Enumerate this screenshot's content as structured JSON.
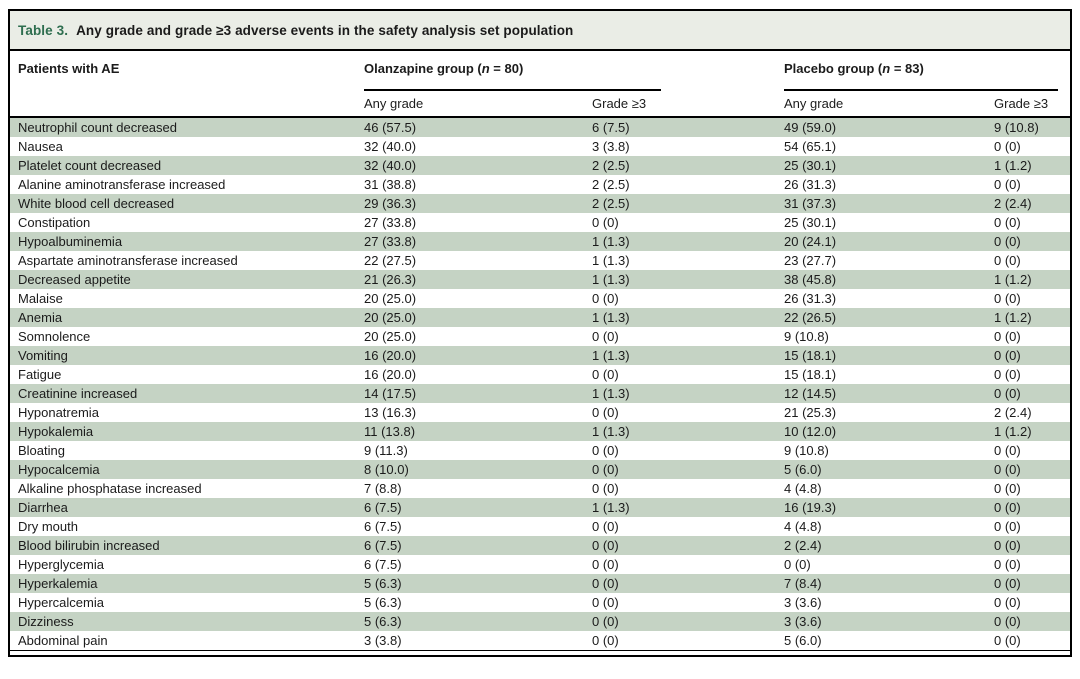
{
  "title": {
    "label": "Table 3.",
    "text": "Any grade and grade ≥3 adverse events in the safety analysis set population"
  },
  "header": {
    "col1": "Patients with AE",
    "groups": [
      {
        "pre": "Olanzapine group (",
        "n": "n",
        "post": " = 80)"
      },
      {
        "pre": "Placebo group (",
        "n": "n",
        "post": " = 83)"
      }
    ],
    "subheaders": [
      "Any grade",
      "Grade ≥3",
      "Any grade",
      "Grade ≥3"
    ]
  },
  "colors": {
    "accent_green": "#2e6e4f",
    "row_shade": "#c5d3c4",
    "title_bar_bg": "#eaede6",
    "border": "#000000"
  },
  "table": {
    "columns": [
      "name",
      "olz_any",
      "olz_g3",
      "pbo_any",
      "pbo_g3"
    ],
    "rows": [
      {
        "name": "Neutrophil count decreased",
        "olz_any": "46 (57.5)",
        "olz_g3": "6 (7.5)",
        "pbo_any": "49 (59.0)",
        "pbo_g3": "9 (10.8)"
      },
      {
        "name": "Nausea",
        "olz_any": "32 (40.0)",
        "olz_g3": "3 (3.8)",
        "pbo_any": "54 (65.1)",
        "pbo_g3": "0 (0)"
      },
      {
        "name": "Platelet count decreased",
        "olz_any": "32 (40.0)",
        "olz_g3": "2 (2.5)",
        "pbo_any": "25 (30.1)",
        "pbo_g3": "1 (1.2)"
      },
      {
        "name": "Alanine aminotransferase increased",
        "olz_any": "31 (38.8)",
        "olz_g3": "2 (2.5)",
        "pbo_any": "26 (31.3)",
        "pbo_g3": "0 (0)"
      },
      {
        "name": "White blood cell decreased",
        "olz_any": "29 (36.3)",
        "olz_g3": "2 (2.5)",
        "pbo_any": "31 (37.3)",
        "pbo_g3": "2 (2.4)"
      },
      {
        "name": "Constipation",
        "olz_any": "27 (33.8)",
        "olz_g3": "0 (0)",
        "pbo_any": "25 (30.1)",
        "pbo_g3": "0 (0)"
      },
      {
        "name": "Hypoalbuminemia",
        "olz_any": "27 (33.8)",
        "olz_g3": "1 (1.3)",
        "pbo_any": "20 (24.1)",
        "pbo_g3": "0 (0)"
      },
      {
        "name": "Aspartate aminotransferase increased",
        "olz_any": "22 (27.5)",
        "olz_g3": "1 (1.3)",
        "pbo_any": "23 (27.7)",
        "pbo_g3": "0 (0)"
      },
      {
        "name": "Decreased appetite",
        "olz_any": "21 (26.3)",
        "olz_g3": "1 (1.3)",
        "pbo_any": "38 (45.8)",
        "pbo_g3": "1 (1.2)"
      },
      {
        "name": "Malaise",
        "olz_any": "20 (25.0)",
        "olz_g3": "0 (0)",
        "pbo_any": "26 (31.3)",
        "pbo_g3": "0 (0)"
      },
      {
        "name": "Anemia",
        "olz_any": "20 (25.0)",
        "olz_g3": "1 (1.3)",
        "pbo_any": "22 (26.5)",
        "pbo_g3": "1 (1.2)"
      },
      {
        "name": "Somnolence",
        "olz_any": "20 (25.0)",
        "olz_g3": "0 (0)",
        "pbo_any": "9 (10.8)",
        "pbo_g3": "0 (0)"
      },
      {
        "name": "Vomiting",
        "olz_any": "16 (20.0)",
        "olz_g3": "1 (1.3)",
        "pbo_any": "15 (18.1)",
        "pbo_g3": "0 (0)"
      },
      {
        "name": "Fatigue",
        "olz_any": "16 (20.0)",
        "olz_g3": "0 (0)",
        "pbo_any": "15 (18.1)",
        "pbo_g3": "0 (0)"
      },
      {
        "name": "Creatinine increased",
        "olz_any": "14 (17.5)",
        "olz_g3": "1 (1.3)",
        "pbo_any": "12 (14.5)",
        "pbo_g3": "0 (0)"
      },
      {
        "name": "Hyponatremia",
        "olz_any": "13 (16.3)",
        "olz_g3": "0 (0)",
        "pbo_any": "21 (25.3)",
        "pbo_g3": "2 (2.4)"
      },
      {
        "name": "Hypokalemia",
        "olz_any": "11 (13.8)",
        "olz_g3": "1 (1.3)",
        "pbo_any": "10 (12.0)",
        "pbo_g3": "1 (1.2)"
      },
      {
        "name": "Bloating",
        "olz_any": "9 (11.3)",
        "olz_g3": "0 (0)",
        "pbo_any": "9 (10.8)",
        "pbo_g3": "0 (0)"
      },
      {
        "name": "Hypocalcemia",
        "olz_any": "8 (10.0)",
        "olz_g3": "0 (0)",
        "pbo_any": "5 (6.0)",
        "pbo_g3": "0 (0)"
      },
      {
        "name": "Alkaline phosphatase increased",
        "olz_any": "7 (8.8)",
        "olz_g3": "0 (0)",
        "pbo_any": "4 (4.8)",
        "pbo_g3": "0 (0)"
      },
      {
        "name": "Diarrhea",
        "olz_any": "6 (7.5)",
        "olz_g3": "1 (1.3)",
        "pbo_any": "16 (19.3)",
        "pbo_g3": "0 (0)"
      },
      {
        "name": "Dry mouth",
        "olz_any": "6 (7.5)",
        "olz_g3": "0 (0)",
        "pbo_any": "4 (4.8)",
        "pbo_g3": "0 (0)"
      },
      {
        "name": "Blood bilirubin increased",
        "olz_any": "6 (7.5)",
        "olz_g3": "0 (0)",
        "pbo_any": "2 (2.4)",
        "pbo_g3": "0 (0)"
      },
      {
        "name": "Hyperglycemia",
        "olz_any": "6 (7.5)",
        "olz_g3": "0 (0)",
        "pbo_any": "0 (0)",
        "pbo_g3": "0 (0)"
      },
      {
        "name": "Hyperkalemia",
        "olz_any": "5 (6.3)",
        "olz_g3": "0 (0)",
        "pbo_any": "7 (8.4)",
        "pbo_g3": "0 (0)"
      },
      {
        "name": "Hypercalcemia",
        "olz_any": "5 (6.3)",
        "olz_g3": "0 (0)",
        "pbo_any": "3 (3.6)",
        "pbo_g3": "0 (0)"
      },
      {
        "name": "Dizziness",
        "olz_any": "5 (6.3)",
        "olz_g3": "0 (0)",
        "pbo_any": "3 (3.6)",
        "pbo_g3": "0 (0)"
      },
      {
        "name": "Abdominal pain",
        "olz_any": "3 (3.8)",
        "olz_g3": "0 (0)",
        "pbo_any": "5 (6.0)",
        "pbo_g3": "0 (0)"
      }
    ]
  }
}
